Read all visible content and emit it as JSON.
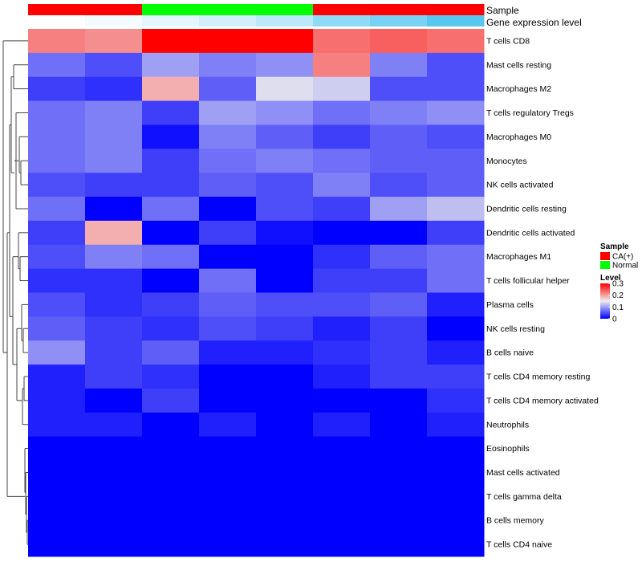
{
  "chart_data": {
    "type": "heatmap",
    "title": "",
    "annotations": {
      "sample_label": "Sample",
      "sample": [
        "CA(+)",
        "CA(+)",
        "Normal",
        "Normal",
        "Normal",
        "CA(+)",
        "CA(+)",
        "CA(+)"
      ],
      "expression_label": "Gene expression level",
      "expression": [
        0.0,
        0.02,
        0.05,
        0.08,
        0.12,
        0.2,
        0.24,
        0.3
      ]
    },
    "rows": [
      "T cells CD8",
      "Mast cells resting",
      "Macrophages M2",
      "T cells regulatory  Tregs",
      "Macrophages M0",
      "Monocytes",
      "NK cells activated",
      "Dendritic cells resting",
      "Dendritic cells activated",
      "Macrophages M1",
      "T cells follicular helper",
      "Plasma cells",
      "NK cells resting",
      "B cells naive",
      "T cells CD4 memory resting",
      "T cells CD4 memory activated",
      "Neutrophils",
      "Eosinophils",
      "Mast cells activated",
      "T cells gamma delta",
      "B cells memory",
      "T cells CD4 naive"
    ],
    "values": [
      [
        0.22,
        0.21,
        0.3,
        0.3,
        0.3,
        0.23,
        0.24,
        0.23
      ],
      [
        0.07,
        0.05,
        0.1,
        0.08,
        0.09,
        0.22,
        0.08,
        0.05
      ],
      [
        0.04,
        0.03,
        0.19,
        0.06,
        0.14,
        0.13,
        0.05,
        0.05
      ],
      [
        0.07,
        0.08,
        0.04,
        0.1,
        0.09,
        0.07,
        0.08,
        0.09
      ],
      [
        0.07,
        0.08,
        0.01,
        0.08,
        0.06,
        0.04,
        0.06,
        0.05
      ],
      [
        0.07,
        0.08,
        0.04,
        0.07,
        0.08,
        0.07,
        0.06,
        0.06
      ],
      [
        0.05,
        0.04,
        0.04,
        0.06,
        0.05,
        0.08,
        0.05,
        0.06
      ],
      [
        0.07,
        0.0,
        0.07,
        0.0,
        0.05,
        0.04,
        0.1,
        0.12
      ],
      [
        0.04,
        0.19,
        0.0,
        0.04,
        0.01,
        0.0,
        0.0,
        0.04
      ],
      [
        0.05,
        0.08,
        0.07,
        0.0,
        0.0,
        0.03,
        0.06,
        0.07
      ],
      [
        0.03,
        0.03,
        0.0,
        0.07,
        0.0,
        0.04,
        0.04,
        0.07
      ],
      [
        0.05,
        0.03,
        0.04,
        0.06,
        0.05,
        0.05,
        0.06,
        0.02
      ],
      [
        0.06,
        0.04,
        0.03,
        0.05,
        0.04,
        0.02,
        0.04,
        0.0
      ],
      [
        0.09,
        0.04,
        0.06,
        0.02,
        0.02,
        0.03,
        0.04,
        0.02
      ],
      [
        0.02,
        0.04,
        0.03,
        0.0,
        0.0,
        0.02,
        0.04,
        0.04
      ],
      [
        0.02,
        0.0,
        0.04,
        0.0,
        0.0,
        0.0,
        0.0,
        0.03
      ],
      [
        0.02,
        0.02,
        0.0,
        0.02,
        0.0,
        0.02,
        0.0,
        0.02
      ],
      [
        0.0,
        0.0,
        0.0,
        0.0,
        0.0,
        0.0,
        0.0,
        0.0
      ],
      [
        0.0,
        0.0,
        0.0,
        0.0,
        0.0,
        0.0,
        0.0,
        0.0
      ],
      [
        0.0,
        0.0,
        0.0,
        0.0,
        0.0,
        0.0,
        0.0,
        0.0
      ],
      [
        0.0,
        0.0,
        0.0,
        0.0,
        0.0,
        0.0,
        0.0,
        0.0
      ],
      [
        0.0,
        0.0,
        0.0,
        0.0,
        0.0,
        0.0,
        0.0,
        0.0
      ]
    ],
    "color_scale": {
      "low": "#0000ff",
      "mid": "#eeeeee",
      "high": "#ff0000",
      "min": 0,
      "mid_value": 0.15,
      "max": 0.3
    },
    "legend": {
      "sample_title": "Sample",
      "sample_entries": [
        {
          "label": "CA(+)",
          "color": "#ff0000"
        },
        {
          "label": "Normal",
          "color": "#00ff00"
        }
      ],
      "level_title": "Level",
      "level_ticks": [
        "0.3",
        "0.2",
        "0.1",
        "0"
      ],
      "level_values": [
        0.3,
        0.2,
        0.1,
        0
      ],
      "placement": "right"
    },
    "dendrogram": "rows"
  }
}
